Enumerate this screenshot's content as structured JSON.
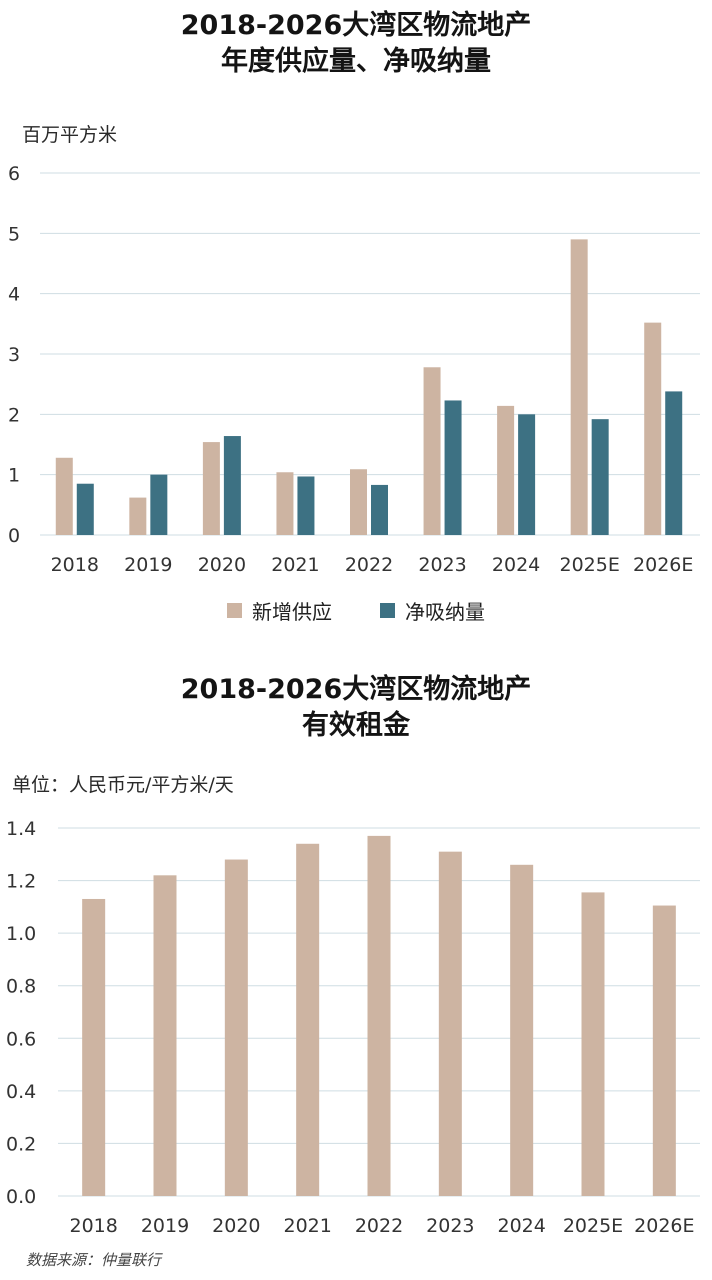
{
  "chart_data": [
    {
      "type": "bar",
      "title_line1": "2018-2026大湾区物流地产",
      "title_line2": "年度供应量、净吸纳量",
      "ylabel": "百万平方米",
      "ylim": [
        0,
        6
      ],
      "yticks": [
        0,
        1,
        2,
        3,
        4,
        5,
        6
      ],
      "grid": true,
      "legend_position": "bottom",
      "categories": [
        "2018",
        "2019",
        "2020",
        "2021",
        "2022",
        "2023",
        "2024",
        "2025E",
        "2026E"
      ],
      "series": [
        {
          "name": "新增供应",
          "color": "#cdb4a2",
          "values": [
            1.28,
            0.62,
            1.54,
            1.04,
            1.09,
            2.78,
            2.14,
            4.9,
            3.52
          ]
        },
        {
          "name": "净吸纳量",
          "color": "#3d7183",
          "values": [
            0.85,
            1.0,
            1.64,
            0.97,
            0.83,
            2.23,
            2.0,
            1.92,
            2.38
          ]
        }
      ]
    },
    {
      "type": "bar",
      "title_line1": "2018-2026大湾区物流地产",
      "title_line2": "有效租金",
      "ylabel": "单位：人民币元/平方米/天",
      "ylim": [
        0,
        1.4
      ],
      "yticks": [
        "0.0",
        "0.2",
        "0.4",
        "0.6",
        "0.8",
        "1.0",
        "1.2",
        "1.4"
      ],
      "grid": true,
      "categories": [
        "2018",
        "2019",
        "2020",
        "2021",
        "2022",
        "2023",
        "2024",
        "2025E",
        "2026E"
      ],
      "series": [
        {
          "color": "#cdb4a2",
          "values": [
            1.13,
            1.22,
            1.28,
            1.34,
            1.37,
            1.31,
            1.26,
            1.155,
            1.105
          ]
        }
      ]
    }
  ],
  "source": "数据来源：仲量联行"
}
